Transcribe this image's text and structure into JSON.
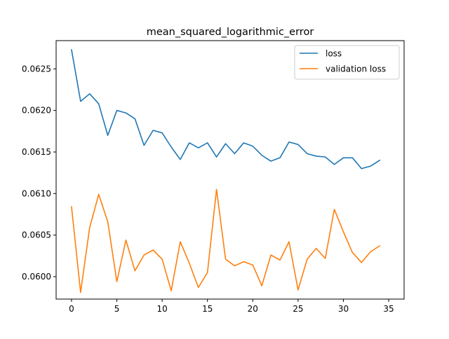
{
  "chart_data": {
    "type": "line",
    "title": "mean_squared_logarithmic_error",
    "xlabel": "",
    "ylabel": "",
    "xlim": [
      -1.7,
      36.7
    ],
    "ylim": [
      0.05973,
      0.06284
    ],
    "x_ticks": [
      0,
      5,
      10,
      15,
      20,
      25,
      30,
      35
    ],
    "x_tick_labels": [
      "0",
      "5",
      "10",
      "15",
      "20",
      "25",
      "30",
      "35"
    ],
    "y_ticks": [
      0.06,
      0.0605,
      0.061,
      0.0615,
      0.062,
      0.0625
    ],
    "y_tick_labels": [
      "0.0600",
      "0.0605",
      "0.0610",
      "0.0615",
      "0.0620",
      "0.0625"
    ],
    "grid": false,
    "legend_position": "top-right",
    "x": [
      0,
      1,
      2,
      3,
      4,
      5,
      6,
      7,
      8,
      9,
      10,
      11,
      12,
      13,
      14,
      15,
      16,
      17,
      18,
      19,
      20,
      21,
      22,
      23,
      24,
      25,
      26,
      27,
      28,
      29,
      30,
      31,
      32,
      33,
      34
    ],
    "series": [
      {
        "name": "loss",
        "color": "#1f77b4",
        "values": [
          0.06273,
          0.06211,
          0.0622,
          0.06208,
          0.0617,
          0.062,
          0.06197,
          0.0619,
          0.06158,
          0.06176,
          0.06173,
          0.06156,
          0.06141,
          0.06161,
          0.06155,
          0.06161,
          0.06144,
          0.0616,
          0.06148,
          0.06161,
          0.06157,
          0.06146,
          0.06139,
          0.06143,
          0.06162,
          0.06159,
          0.06148,
          0.06145,
          0.06144,
          0.06135,
          0.06143,
          0.06143,
          0.0613,
          0.06133,
          0.0614
        ]
      },
      {
        "name": "validation loss",
        "color": "#ff7f0e",
        "values": [
          0.06084,
          0.05981,
          0.06059,
          0.06099,
          0.06066,
          0.05994,
          0.06044,
          0.06007,
          0.06026,
          0.06032,
          0.06021,
          0.05983,
          0.06042,
          0.06016,
          0.05987,
          0.06005,
          0.06105,
          0.06021,
          0.06013,
          0.06018,
          0.06014,
          0.05989,
          0.06026,
          0.0602,
          0.06042,
          0.05984,
          0.06021,
          0.06034,
          0.06022,
          0.06081,
          0.06054,
          0.06029,
          0.06017,
          0.0603,
          0.06037
        ]
      }
    ]
  }
}
